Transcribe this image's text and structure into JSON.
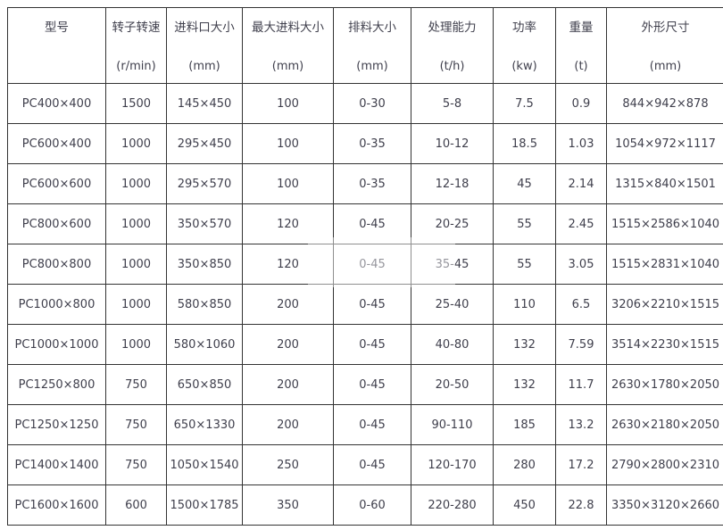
{
  "colors": {
    "background": "#ffffff",
    "border": "#333333",
    "text": "#3f3f4c"
  },
  "table": {
    "columns": [
      {
        "label": "型号",
        "unit": ""
      },
      {
        "label": "转子转速",
        "unit": "(r/min)"
      },
      {
        "label": "进料口大小",
        "unit": "(mm)"
      },
      {
        "label": "最大进料大小",
        "unit": "(mm)"
      },
      {
        "label": "排料大小",
        "unit": "(mm)"
      },
      {
        "label": "处理能力",
        "unit": "(t/h)"
      },
      {
        "label": "功率",
        "unit": "(kw)"
      },
      {
        "label": "重量",
        "unit": "(t)"
      },
      {
        "label": "外形尺寸",
        "unit": "(mm)"
      }
    ],
    "rows": [
      [
        "PC400×400",
        "1500",
        "145×450",
        "100",
        "0-30",
        "5-8",
        "7.5",
        "0.9",
        "844×942×878"
      ],
      [
        "PC600×400",
        "1000",
        "295×450",
        "100",
        "0-35",
        "10-12",
        "18.5",
        "1.03",
        "1054×972×1117"
      ],
      [
        "PC600×600",
        "1000",
        "295×570",
        "100",
        "0-35",
        "12-18",
        "45",
        "2.14",
        "1315×840×1501"
      ],
      [
        "PC800×600",
        "1000",
        "350×570",
        "120",
        "0-45",
        "20-25",
        "55",
        "2.45",
        "1515×2586×1040"
      ],
      [
        "PC800×800",
        "1000",
        "350×850",
        "120",
        "0-45",
        "35-45",
        "55",
        "3.05",
        "1515×2831×1040"
      ],
      [
        "PC1000×800",
        "1000",
        "580×850",
        "200",
        "0-45",
        "25-40",
        "110",
        "6.5",
        "3206×2210×1515"
      ],
      [
        "PC1000×1000",
        "1000",
        "580×1060",
        "200",
        "0-45",
        "40-80",
        "132",
        "7.59",
        "3514×2230×1515"
      ],
      [
        "PC1250×800",
        "750",
        "650×850",
        "200",
        "0-45",
        "20-50",
        "132",
        "11.7",
        "2630×1780×2050"
      ],
      [
        "PC1250×1250",
        "750",
        "650×1330",
        "200",
        "0-45",
        "90-110",
        "185",
        "13.2",
        "2630×2180×2050"
      ],
      [
        "PC1400×1400",
        "750",
        "1050×1540",
        "250",
        "0-45",
        "120-170",
        "280",
        "17.2",
        "2790×2800×2310"
      ],
      [
        "PC1600×1600",
        "600",
        "1500×1785",
        "350",
        "0-60",
        "220-280",
        "450",
        "22.8",
        "3350×3120×2660"
      ]
    ]
  },
  "chart_data": {
    "type": "table",
    "title": "",
    "columns": [
      "型号",
      "转子转速 (r/min)",
      "进料口大小 (mm)",
      "最大进料大小 (mm)",
      "排料大小 (mm)",
      "处理能力 (t/h)",
      "功率 (kw)",
      "重量 (t)",
      "外形尺寸 (mm)"
    ],
    "rows": [
      [
        "PC400×400",
        "1500",
        "145×450",
        "100",
        "0-30",
        "5-8",
        "7.5",
        "0.9",
        "844×942×878"
      ],
      [
        "PC600×400",
        "1000",
        "295×450",
        "100",
        "0-35",
        "10-12",
        "18.5",
        "1.03",
        "1054×972×1117"
      ],
      [
        "PC600×600",
        "1000",
        "295×570",
        "100",
        "0-35",
        "12-18",
        "45",
        "2.14",
        "1315×840×1501"
      ],
      [
        "PC800×600",
        "1000",
        "350×570",
        "120",
        "0-45",
        "20-25",
        "55",
        "2.45",
        "1515×2586×1040"
      ],
      [
        "PC800×800",
        "1000",
        "350×850",
        "120",
        "0-45",
        "35-45",
        "55",
        "3.05",
        "1515×2831×1040"
      ],
      [
        "PC1000×800",
        "1000",
        "580×850",
        "200",
        "0-45",
        "25-40",
        "110",
        "6.5",
        "3206×2210×1515"
      ],
      [
        "PC1000×1000",
        "1000",
        "580×1060",
        "200",
        "0-45",
        "40-80",
        "132",
        "7.59",
        "3514×2230×1515"
      ],
      [
        "PC1250×800",
        "750",
        "650×850",
        "200",
        "0-45",
        "20-50",
        "132",
        "11.7",
        "2630×1780×2050"
      ],
      [
        "PC1250×1250",
        "750",
        "650×1330",
        "200",
        "0-45",
        "90-110",
        "185",
        "13.2",
        "2630×2180×2050"
      ],
      [
        "PC1400×1400",
        "750",
        "1050×1540",
        "250",
        "0-45",
        "120-170",
        "280",
        "17.2",
        "2790×2800×2310"
      ],
      [
        "PC1600×1600",
        "600",
        "1500×1785",
        "350",
        "0-60",
        "220-280",
        "450",
        "22.8",
        "3350×3120×2660"
      ]
    ]
  }
}
